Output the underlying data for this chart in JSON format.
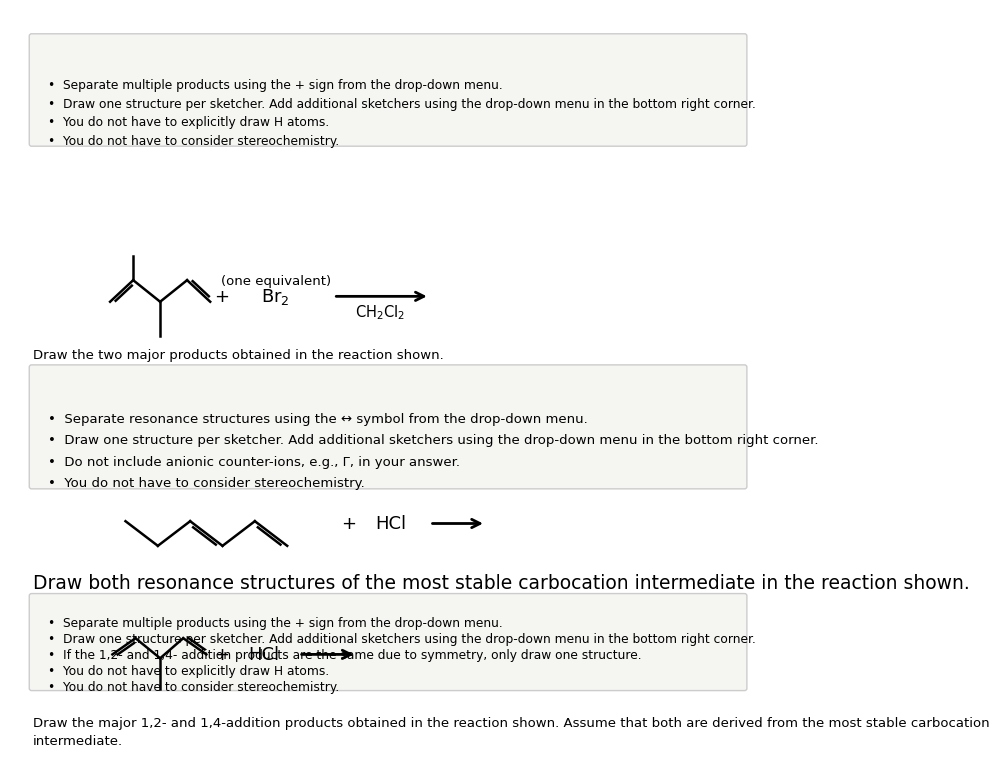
{
  "bg_color": "#ffffff",
  "box_bg": "#f5f5f2",
  "box_border": "#cccccc",
  "text_color": "#000000",
  "section1_title": "Draw the major 1,2- and 1,4-addition products obtained in the reaction shown. Assume that both are derived from the most stable carbocation\nintermediate.",
  "section1_title_size": 9.5,
  "section2_title": "Draw both resonance structures of the most stable carbocation intermediate in the reaction shown.",
  "section2_title_size": 13.5,
  "section3_title": "Draw the two major products obtained in the reaction shown.",
  "section3_title_size": 9.5,
  "box1_bullets": [
    "You do not have to consider stereochemistry.",
    "You do not have to explicitly draw H atoms.",
    "If the 1,2- and 1,4- addition products are the same due to symmetry, only draw one structure.",
    "Draw one structure per sketcher. Add additional sketchers using the drop-down menu in the bottom right corner.",
    "Separate multiple products using the + sign from the drop-down menu."
  ],
  "box2_bullets": [
    "You do not have to consider stereochemistry.",
    "Do not include anionic counter-ions, e.g., Γ, in your answer.",
    "Draw one structure per sketcher. Add additional sketchers using the drop-down menu in the bottom right corner.",
    "Separate resonance structures using the ↔ symbol from the drop-down menu."
  ],
  "box3_bullets": [
    "You do not have to consider stereochemistry.",
    "You do not have to explicitly draw H atoms.",
    "Draw one structure per sketcher. Add additional sketchers using the drop-down menu in the bottom right corner.",
    "Separate multiple products using the + sign from the drop-down menu."
  ]
}
